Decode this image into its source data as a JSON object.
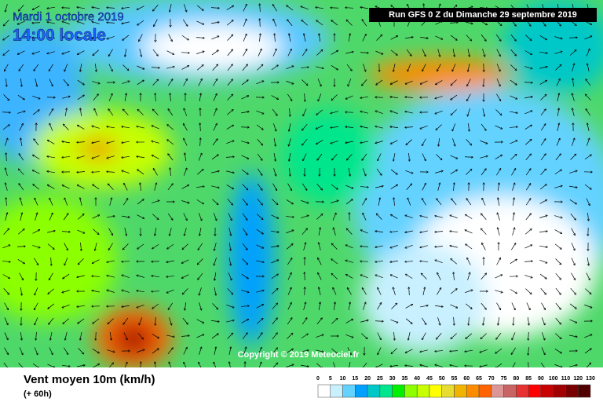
{
  "header": {
    "date": "Mardi 1 octobre 2019",
    "time": "14:00 locale",
    "run": "Run GFS 0 Z du Dimanche 29 septembre 2019"
  },
  "copyright": "Copyright © 2019 Meteociel.fr",
  "footer": {
    "title": "Vent moyen 10m (km/h)",
    "lead": "(+ 60h)"
  },
  "legend": {
    "ticks": [
      0,
      5,
      10,
      15,
      20,
      25,
      30,
      35,
      40,
      45,
      50,
      55,
      60,
      65,
      70,
      75,
      80,
      85,
      90,
      100,
      110,
      120,
      130
    ],
    "colors": [
      "#ffffff",
      "#c8f0ff",
      "#64d2ff",
      "#00a0ff",
      "#00c8c8",
      "#00e68c",
      "#00f000",
      "#8cff00",
      "#c8ff00",
      "#ffff00",
      "#e6dc32",
      "#f0b400",
      "#ff8c00",
      "#ff6400",
      "#dc9696",
      "#c86464",
      "#e63232",
      "#ff0000",
      "#c80000",
      "#a00000",
      "#780000",
      "#500000"
    ]
  }
}
